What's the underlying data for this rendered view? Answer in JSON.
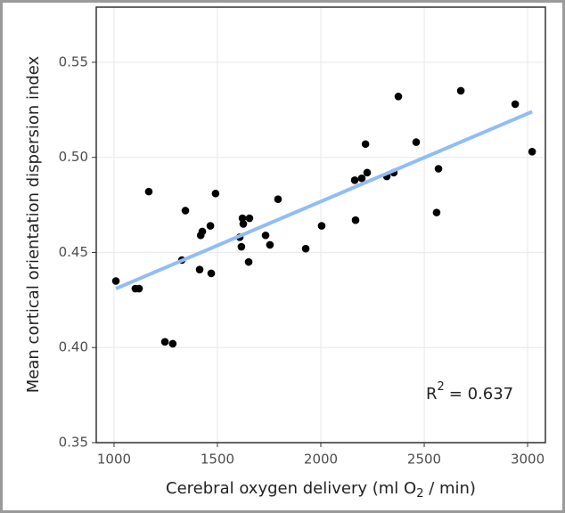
{
  "chart_data": {
    "type": "scatter",
    "xlabel": {
      "text": "Cerebral oxygen delivery (ml O",
      "sub": "2",
      "tail": " / min)"
    },
    "ylabel": "Mean cortical orientation dispersion index",
    "annotation": {
      "base": "R",
      "sup": "2",
      "text": "= 0.637"
    },
    "xlim": [
      914,
      3086
    ],
    "ylim": [
      0.35,
      0.579
    ],
    "xticks": [
      1000,
      1500,
      2000,
      2500,
      3000
    ],
    "yticks": [
      0.35,
      {
        "value": 0.4,
        "label": "0.40"
      },
      0.45,
      {
        "value": 0.5,
        "label": "0.50"
      },
      0.55
    ],
    "grid": true,
    "color": "#000000",
    "x": [
      1009,
      1103,
      1121,
      1168,
      1246,
      1284,
      1328,
      1345,
      1414,
      1419,
      1427,
      1466,
      1470,
      1491,
      1608,
      1616,
      1621,
      1625,
      1655,
      1651,
      1733,
      1754,
      1793,
      1927,
      2004,
      2164,
      2168,
      2198,
      2216,
      2224,
      2319,
      2353,
      2375,
      2461,
      2560,
      2569,
      2677,
      2940,
      3022
    ],
    "y": [
      0.435,
      0.431,
      0.431,
      0.482,
      0.403,
      0.402,
      0.446,
      0.472,
      0.441,
      0.459,
      0.461,
      0.464,
      0.439,
      0.481,
      0.458,
      0.453,
      0.468,
      0.465,
      0.468,
      0.445,
      0.459,
      0.454,
      0.478,
      0.452,
      0.464,
      0.488,
      0.467,
      0.489,
      0.507,
      0.492,
      0.49,
      0.492,
      0.532,
      0.508,
      0.471,
      0.494,
      0.535,
      0.528,
      0.503
    ],
    "trend": {
      "color": "#90bdf5",
      "x": [
        1009,
        3022
      ],
      "y": [
        0.431,
        0.524
      ]
    }
  }
}
